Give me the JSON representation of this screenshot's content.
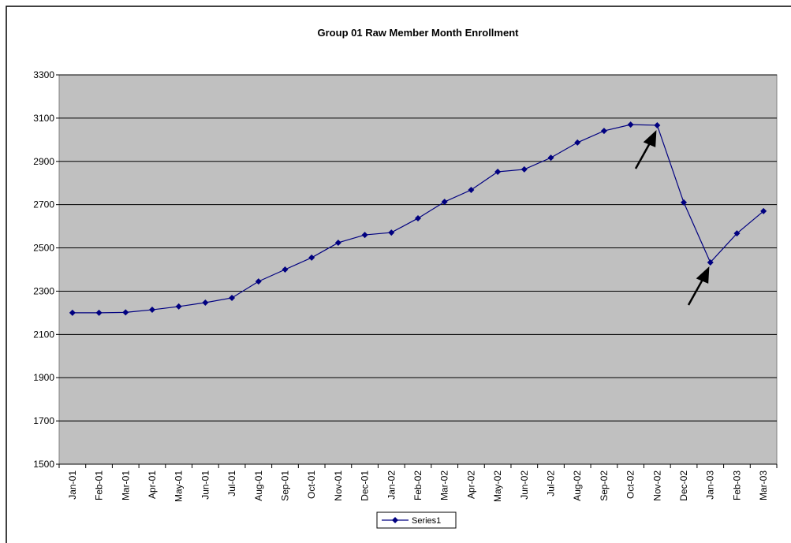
{
  "chart_data": {
    "type": "line",
    "title": "Group 01 Raw Member Month Enrollment",
    "categories": [
      "Jan-01",
      "Feb-01",
      "Mar-01",
      "Apr-01",
      "May-01",
      "Jun-01",
      "Jul-01",
      "Aug-01",
      "Sep-01",
      "Oct-01",
      "Nov-01",
      "Dec-01",
      "Jan-02",
      "Feb-02",
      "Mar-02",
      "Apr-02",
      "May-02",
      "Jun-02",
      "Jul-02",
      "Aug-02",
      "Sep-02",
      "Oct-02",
      "Nov-02",
      "Dec-02",
      "Jan-03",
      "Feb-03",
      "Mar-03"
    ],
    "series": [
      {
        "name": "Series1",
        "color": "#000080",
        "values": [
          2200,
          2200,
          2202,
          2214,
          2229,
          2247,
          2269,
          2345,
          2400,
          2455,
          2524,
          2560,
          2571,
          2637,
          2713,
          2768,
          2852,
          2863,
          2917,
          2987,
          3041,
          3070,
          3067,
          2710,
          2433,
          2567,
          2670
        ]
      }
    ],
    "ylim": [
      1500,
      3300
    ],
    "yticks": [
      1500,
      1700,
      1900,
      2100,
      2300,
      2500,
      2700,
      2900,
      3100,
      3300
    ],
    "grid": true,
    "legend": "bottom"
  }
}
